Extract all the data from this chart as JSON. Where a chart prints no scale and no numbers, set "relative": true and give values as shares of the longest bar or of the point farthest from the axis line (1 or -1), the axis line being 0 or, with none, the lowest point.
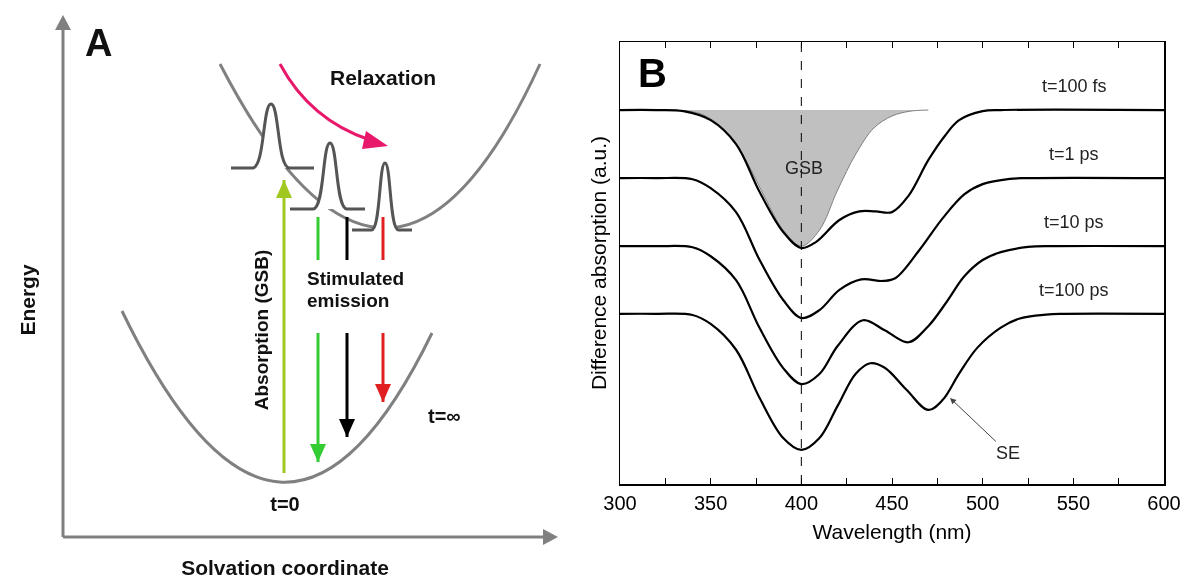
{
  "chart_data": [
    {
      "type": "other",
      "title": "A",
      "xlabel": "Solvation coordinate",
      "ylabel": "Energy",
      "annotations": [
        "Relaxation",
        "Absorption (GSB)",
        "Stimulated emission",
        "t=0",
        "t=∞"
      ]
    },
    {
      "type": "line",
      "title": "B",
      "xlabel": "Wavelength (nm)",
      "ylabel": "Difference absorption (a.u.)",
      "relative": true,
      "xlim": [
        300,
        600
      ],
      "xticks": [
        300,
        {
          "value": 325,
          "label": null
        },
        350,
        {
          "value": 375,
          "label": null
        },
        400,
        {
          "value": 425,
          "label": null
        },
        450,
        {
          "value": 475,
          "label": null
        },
        500,
        {
          "value": 525,
          "label": null
        },
        550,
        {
          "value": 575,
          "label": null
        },
        600
      ],
      "series": [
        {
          "type": "area",
          "color": "#c0c0c0",
          "x": [
            330,
            345,
            360,
            370,
            380,
            390,
            400,
            410,
            420,
            430,
            440,
            450,
            460,
            470
          ],
          "values": [
            1,
            0.989,
            0.936,
            0.861,
            0.765,
            0.679,
            0.636,
            0.679,
            0.786,
            0.882,
            0.952,
            0.984,
            0.997,
            1
          ]
        },
        {
          "name": "t=100 fs",
          "color": "#000000",
          "x": [
            300,
            320,
            335,
            350,
            364,
            377,
            390,
            400,
            408,
            421,
            432,
            441,
            450,
            459,
            470,
            479,
            487,
            500,
            510,
            600
          ],
          "values": [
            1,
            1,
            0.997,
            0.973,
            0.909,
            0.781,
            0.674,
            0.631,
            0.647,
            0.706,
            0.729,
            0.729,
            0.727,
            0.77,
            0.866,
            0.93,
            0.973,
            0.997,
            1,
            1
          ]
        },
        {
          "name": "t=1 ps",
          "color": "#000000",
          "x": [
            300,
            320,
            340,
            350,
            364,
            377,
            390,
            400,
            410,
            421,
            433,
            445,
            452,
            465,
            478,
            490,
            500,
            515,
            525,
            600
          ],
          "values": [
            0.818,
            0.818,
            0.815,
            0.791,
            0.727,
            0.599,
            0.492,
            0.444,
            0.465,
            0.519,
            0.547,
            0.543,
            0.551,
            0.625,
            0.711,
            0.775,
            0.802,
            0.816,
            0.818,
            0.818
          ]
        },
        {
          "name": "t=10 ps",
          "color": "#000000",
          "x": [
            300,
            320,
            340,
            350,
            364,
            377,
            390,
            400,
            410,
            420,
            434,
            446,
            459,
            470,
            480,
            490,
            500,
            510,
            525,
            540,
            600
          ],
          "values": [
            0.636,
            0.636,
            0.633,
            0.609,
            0.545,
            0.417,
            0.31,
            0.267,
            0.294,
            0.369,
            0.438,
            0.411,
            0.379,
            0.422,
            0.486,
            0.556,
            0.599,
            0.62,
            0.634,
            0.636,
            0.636
          ]
        },
        {
          "name": "t=100 ps",
          "color": "#000000",
          "x": [
            300,
            320,
            340,
            350,
            364,
            377,
            390,
            400,
            410,
            420,
            430,
            438,
            446,
            458,
            470,
            478,
            487,
            497,
            510,
            520,
            535,
            545,
            600
          ],
          "values": [
            0.455,
            0.455,
            0.452,
            0.428,
            0.359,
            0.23,
            0.123,
            0.091,
            0.123,
            0.209,
            0.295,
            0.323,
            0.311,
            0.252,
            0.198,
            0.225,
            0.295,
            0.364,
            0.418,
            0.442,
            0.453,
            0.455,
            0.455
          ]
        }
      ],
      "ref_lines": [
        {
          "axis": "x",
          "value": 400,
          "color": "#000000",
          "line_style": "dashed"
        }
      ],
      "annotations": [
        "GSB",
        {
          "text": "SE",
          "x": 482,
          "y": 0.23
        }
      ]
    }
  ]
}
